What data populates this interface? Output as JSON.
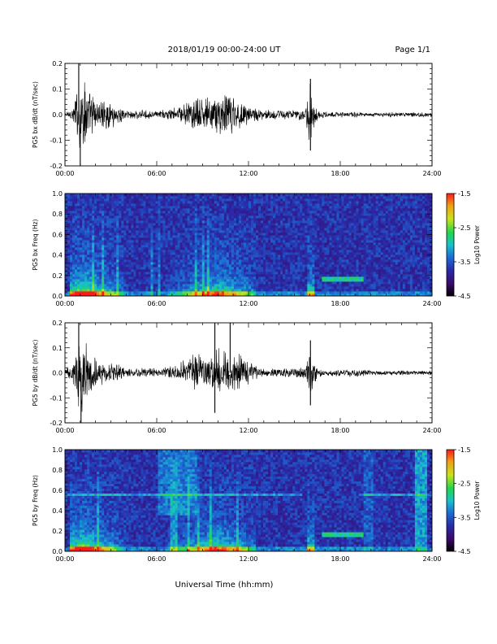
{
  "header": {
    "date_range": "2018/01/19  00:00-24:00 UT",
    "page": "Page 1/1"
  },
  "footer": {
    "xlabel": "Universal Time (hh:mm)"
  },
  "colors": {
    "waveform": "#000000",
    "colormap": [
      "#000000",
      "#3a0a6a",
      "#2a2aa8",
      "#1b6fd6",
      "#19c2c8",
      "#22d64a",
      "#c9e21a",
      "#f0a015",
      "#ff1a1a"
    ]
  },
  "chart_data": [
    {
      "type": "line",
      "ylabel": "PG5 bx dB/dt (nT/sec)",
      "ylim": [
        -0.2,
        0.2
      ],
      "yticks": [
        "0.2",
        "0.1",
        "0.0",
        "-0.1",
        "-0.2"
      ],
      "xlim": [
        "00:00",
        "24:00"
      ],
      "xticks": [
        "00:00",
        "06:00",
        "12:00",
        "18:00",
        "24:00"
      ],
      "envelope_hours": [
        0,
        0.5,
        0.8,
        1.0,
        1.3,
        1.6,
        2.0,
        2.5,
        3.0,
        3.5,
        4.0,
        5.0,
        6.0,
        7.0,
        7.8,
        8.5,
        9.5,
        10.5,
        11.0,
        11.8,
        12.5,
        13.0,
        14.0,
        15.0,
        15.7,
        16.0,
        16.3,
        16.6,
        17.0,
        18.0,
        19.0,
        20.0,
        22.0,
        24.0
      ],
      "envelope_amplitude": [
        0.01,
        0.03,
        0.12,
        0.2,
        0.16,
        0.1,
        0.08,
        0.06,
        0.06,
        0.04,
        0.02,
        0.02,
        0.015,
        0.03,
        0.05,
        0.07,
        0.08,
        0.1,
        0.09,
        0.05,
        0.03,
        0.02,
        0.025,
        0.02,
        0.03,
        0.14,
        0.06,
        0.02,
        0.012,
        0.012,
        0.015,
        0.01,
        0.01,
        0.01
      ],
      "spike_events": [
        {
          "hour": 0.9,
          "value": 0.2
        },
        {
          "hour": 1.0,
          "value": -0.2
        },
        {
          "hour": 16.05,
          "value": 0.14
        },
        {
          "hour": 16.05,
          "value": -0.14
        }
      ]
    },
    {
      "type": "heatmap",
      "ylabel": "PG5 bx Freq (Hz)",
      "ylim": [
        0.0,
        1.0
      ],
      "yticks": [
        "1.0",
        "0.8",
        "0.6",
        "0.4",
        "0.2",
        "0.0"
      ],
      "xlim": [
        "00:00",
        "24:00"
      ],
      "xticks": [
        "00:00",
        "06:00",
        "12:00",
        "18:00",
        "24:00"
      ],
      "colorbar_label": "Log10 Power",
      "colorbar_range": [
        -4.5,
        -1.5
      ],
      "colorbar_ticks": [
        "-1.5",
        "-2.5",
        "-3.5",
        "-4.5"
      ]
    },
    {
      "type": "line",
      "ylabel": "PG5 by dB/dt (nT/sec)",
      "ylim": [
        -0.2,
        0.2
      ],
      "yticks": [
        "0.2",
        "0.1",
        "0.0",
        "-0.1",
        "-0.2"
      ],
      "xlim": [
        "00:00",
        "24:00"
      ],
      "xticks": [
        "00:00",
        "06:00",
        "12:00",
        "18:00",
        "24:00"
      ],
      "envelope_hours": [
        0,
        0.5,
        0.8,
        1.0,
        1.3,
        1.6,
        2.0,
        2.5,
        3.0,
        3.5,
        4.0,
        5.0,
        6.0,
        7.0,
        7.8,
        8.5,
        9.5,
        10.0,
        10.5,
        11.0,
        11.8,
        12.5,
        13.0,
        14.0,
        15.0,
        15.7,
        16.0,
        16.3,
        16.6,
        17.0,
        18.0,
        19.0,
        20.0,
        22.0,
        24.0
      ],
      "envelope_amplitude": [
        0.02,
        0.04,
        0.14,
        0.2,
        0.15,
        0.1,
        0.08,
        0.06,
        0.05,
        0.04,
        0.02,
        0.02,
        0.02,
        0.03,
        0.06,
        0.09,
        0.08,
        0.12,
        0.1,
        0.12,
        0.06,
        0.03,
        0.02,
        0.02,
        0.02,
        0.03,
        0.13,
        0.05,
        0.02,
        0.015,
        0.015,
        0.02,
        0.01,
        0.01,
        0.01
      ],
      "spike_events": [
        {
          "hour": 0.9,
          "value": 0.2
        },
        {
          "hour": 1.05,
          "value": -0.2
        },
        {
          "hour": 9.8,
          "value": 0.2
        },
        {
          "hour": 9.8,
          "value": -0.16
        },
        {
          "hour": 10.8,
          "value": 0.2
        },
        {
          "hour": 16.05,
          "value": 0.13
        },
        {
          "hour": 16.05,
          "value": -0.13
        }
      ]
    },
    {
      "type": "heatmap",
      "ylabel": "PG5 by Freq (Hz)",
      "ylim": [
        0.0,
        1.0
      ],
      "yticks": [
        "1.0",
        "0.8",
        "0.6",
        "0.4",
        "0.2",
        "0.0"
      ],
      "xlim": [
        "00:00",
        "24:00"
      ],
      "xticks": [
        "00:00",
        "06:00",
        "12:00",
        "18:00",
        "24:00"
      ],
      "colorbar_label": "Log10 Power",
      "colorbar_range": [
        -4.5,
        -1.5
      ],
      "colorbar_ticks": [
        "-1.5",
        "-2.5",
        "-3.5",
        "-4.5"
      ]
    }
  ]
}
